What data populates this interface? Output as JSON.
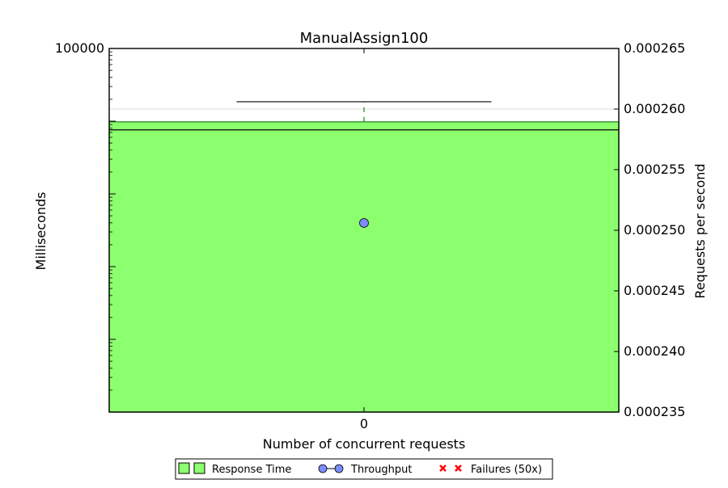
{
  "chart_data": {
    "type": "box+bar+line",
    "title": "ManualAssign100",
    "xlabel": "Number of concurrent requests",
    "ylabel_left": "Milliseconds",
    "ylabel_right": "Requests per second",
    "categories": [
      "0"
    ],
    "left_axis": {
      "scale": "log",
      "ylim": [
        1,
        100000
      ],
      "tick_labels": [
        "100000"
      ]
    },
    "right_axis": {
      "ylim": [
        0.000235,
        0.000265
      ],
      "ticks": [
        0.000235,
        0.00024,
        0.000245,
        0.00025,
        0.000255,
        0.00026,
        0.000265
      ],
      "tick_labels": [
        "0.000235",
        "0.000240",
        "0.000245",
        "0.000250",
        "0.000255",
        "0.000260",
        "0.000265"
      ]
    },
    "series": [
      {
        "name": "Response Time",
        "kind": "box",
        "color": "#8cff6e",
        "edge_color": "#1a7f1a",
        "x": "0",
        "q1": 1,
        "median": 7600,
        "q3": 9800,
        "whisker_high": 18500
      },
      {
        "name": "Throughput",
        "kind": "line",
        "color": "#7a8cff",
        "x": [
          "0"
        ],
        "values": [
          0.0002506
        ]
      },
      {
        "name": "Failures (50x)",
        "kind": "marker",
        "color": "#ff0000",
        "x": [],
        "values": []
      }
    ],
    "grid": true,
    "legend": {
      "placement": "bottom-center",
      "entries": [
        "Response Time",
        "Throughput",
        "Failures (50x)"
      ]
    }
  }
}
